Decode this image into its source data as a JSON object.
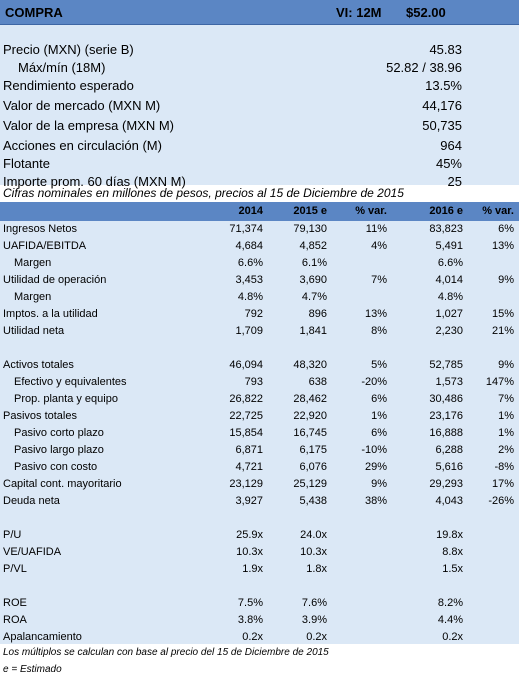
{
  "header": {
    "title": "COMPRA",
    "vi": "VI: 12M",
    "price": "$52.00"
  },
  "summary": [
    {
      "label": "Precio (MXN) (serie B)",
      "value": "45.83",
      "indent": false
    },
    {
      "label": "Máx/mín (18M)",
      "value": "52.82 / 38.96",
      "indent": true
    },
    {
      "label": "Rendimiento esperado",
      "value": "13.5%",
      "indent": false
    },
    {
      "label": "Valor de mercado (MXN M)",
      "value": "44,176",
      "indent": false
    },
    {
      "label": "Valor de la empresa (MXN M)",
      "value": "50,735",
      "indent": false
    },
    {
      "label": "Acciones en circulación (M)",
      "value": "964",
      "indent": false
    },
    {
      "label": "Flotante",
      "value": "45%",
      "indent": false
    },
    {
      "label": "Importe prom. 60 días (MXN M)",
      "value": "25",
      "indent": false
    }
  ],
  "note_top": "Cifras nominales en millones de pesos, precios al 15 de Diciembre de 2015",
  "table": {
    "headers": [
      "",
      "2014",
      "2015 e",
      "% var.",
      "2016 e",
      "% var."
    ],
    "rows": [
      {
        "cells": [
          "Ingresos Netos",
          "71,374",
          "79,130",
          "11%",
          "83,823",
          "6%"
        ],
        "indent": false
      },
      {
        "cells": [
          "UAFIDA/EBITDA",
          "4,684",
          "4,852",
          "4%",
          "5,491",
          "13%"
        ],
        "indent": false
      },
      {
        "cells": [
          "Margen",
          "6.6%",
          "6.1%",
          "",
          "6.6%",
          ""
        ],
        "indent": true
      },
      {
        "cells": [
          "Utilidad de operación",
          "3,453",
          "3,690",
          "7%",
          "4,014",
          "9%"
        ],
        "indent": false
      },
      {
        "cells": [
          "Margen",
          "4.8%",
          "4.7%",
          "",
          "4.8%",
          ""
        ],
        "indent": true
      },
      {
        "cells": [
          "Imptos. a la utilidad",
          "792",
          "896",
          "13%",
          "1,027",
          "15%"
        ],
        "indent": false
      },
      {
        "cells": [
          "Utilidad neta",
          "1,709",
          "1,841",
          "8%",
          "2,230",
          "21%"
        ],
        "indent": false
      },
      {
        "cells": [
          "",
          "",
          "",
          "",
          "",
          ""
        ],
        "indent": false
      },
      {
        "cells": [
          "Activos totales",
          "46,094",
          "48,320",
          "5%",
          "52,785",
          "9%"
        ],
        "indent": false
      },
      {
        "cells": [
          "Efectivo y equivalentes",
          "793",
          "638",
          "-20%",
          "1,573",
          "147%"
        ],
        "indent": true
      },
      {
        "cells": [
          "Prop. planta y equipo",
          "26,822",
          "28,462",
          "6%",
          "30,486",
          "7%"
        ],
        "indent": true
      },
      {
        "cells": [
          "Pasivos totales",
          "22,725",
          "22,920",
          "1%",
          "23,176",
          "1%"
        ],
        "indent": false
      },
      {
        "cells": [
          "Pasivo corto plazo",
          "15,854",
          "16,745",
          "6%",
          "16,888",
          "1%"
        ],
        "indent": true
      },
      {
        "cells": [
          "Pasivo largo plazo",
          "6,871",
          "6,175",
          "-10%",
          "6,288",
          "2%"
        ],
        "indent": true
      },
      {
        "cells": [
          "Pasivo con costo",
          "4,721",
          "6,076",
          "29%",
          "5,616",
          "-8%"
        ],
        "indent": true
      },
      {
        "cells": [
          "Capital cont. mayoritario",
          "23,129",
          "25,129",
          "9%",
          "29,293",
          "17%"
        ],
        "indent": false
      },
      {
        "cells": [
          "Deuda neta",
          "3,927",
          "5,438",
          "38%",
          "4,043",
          "-26%"
        ],
        "indent": false
      },
      {
        "cells": [
          "",
          "",
          "",
          "",
          "",
          ""
        ],
        "indent": false
      },
      {
        "cells": [
          "P/U",
          "25.9x",
          "24.0x",
          "",
          "19.8x",
          ""
        ],
        "indent": false
      },
      {
        "cells": [
          "VE/UAFIDA",
          "10.3x",
          "10.3x",
          "",
          "8.8x",
          ""
        ],
        "indent": false
      },
      {
        "cells": [
          "P/VL",
          "1.9x",
          "1.8x",
          "",
          "1.5x",
          ""
        ],
        "indent": false
      },
      {
        "cells": [
          "",
          "",
          "",
          "",
          "",
          ""
        ],
        "indent": false
      },
      {
        "cells": [
          "ROE",
          "7.5%",
          "7.6%",
          "",
          "8.2%",
          ""
        ],
        "indent": false
      },
      {
        "cells": [
          "ROA",
          "3.8%",
          "3.9%",
          "",
          "4.4%",
          ""
        ],
        "indent": false
      },
      {
        "cells": [
          "Apalancamiento",
          "0.2x",
          "0.2x",
          "",
          "0.2x",
          ""
        ],
        "indent": false
      }
    ]
  },
  "footer": [
    "Los múltiplos se calculan con base al precio del 15 de Diciembre de 2015",
    "e = Estimado"
  ]
}
